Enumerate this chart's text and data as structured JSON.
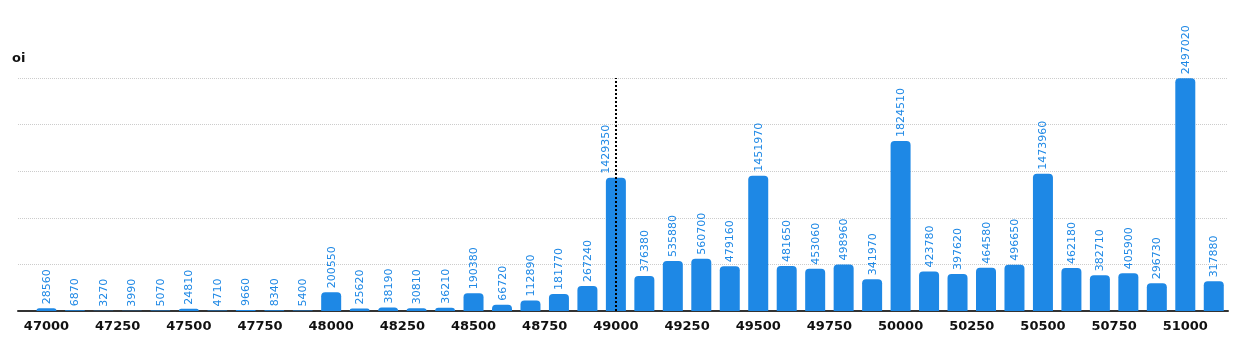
{
  "chart_data": {
    "type": "bar",
    "ylabel": "oi",
    "x": [
      47000,
      47100,
      47200,
      47300,
      47400,
      47500,
      47600,
      47700,
      47800,
      47900,
      48000,
      48100,
      48200,
      48300,
      48400,
      48500,
      48600,
      48700,
      48800,
      48900,
      49000,
      49100,
      49200,
      49300,
      49400,
      49500,
      49600,
      49700,
      49800,
      49900,
      50000,
      50100,
      50200,
      50300,
      50400,
      50500,
      50600,
      50700,
      50800,
      50900,
      51000,
      51100
    ],
    "values": [
      28560,
      6870,
      3270,
      3990,
      5070,
      24810,
      4710,
      9660,
      8340,
      5400,
      200550,
      25620,
      38190,
      30810,
      36210,
      190380,
      66720,
      112890,
      181770,
      267240,
      1429350,
      376380,
      535880,
      560700,
      479160,
      1451970,
      481650,
      453060,
      498960,
      341970,
      1824510,
      423780,
      397620,
      464580,
      496650,
      1473960,
      462180,
      382710,
      405900,
      296730,
      2497020,
      317880
    ],
    "color": "#1e88e5",
    "data_labels": true,
    "xlim": [
      46900,
      51150
    ],
    "xticks": [
      47000,
      47250,
      47500,
      47750,
      48000,
      48250,
      48500,
      48750,
      49000,
      49250,
      49500,
      49750,
      50000,
      50250,
      50500,
      50750,
      51000
    ],
    "ylim": [
      0,
      2500000
    ],
    "yticks": [
      {
        "value": 0,
        "label": null
      },
      {
        "value": 500000,
        "label": null
      },
      {
        "value": 1000000,
        "label": null
      },
      {
        "value": 1500000,
        "label": null
      },
      {
        "value": 2000000,
        "label": null
      },
      {
        "value": 2500000,
        "label": null
      }
    ],
    "tick_labels": "x",
    "grid": "y",
    "ref_lines": [
      {
        "axis": "x",
        "value": 49000,
        "color": "#000000",
        "line_style": "dotted"
      }
    ]
  }
}
